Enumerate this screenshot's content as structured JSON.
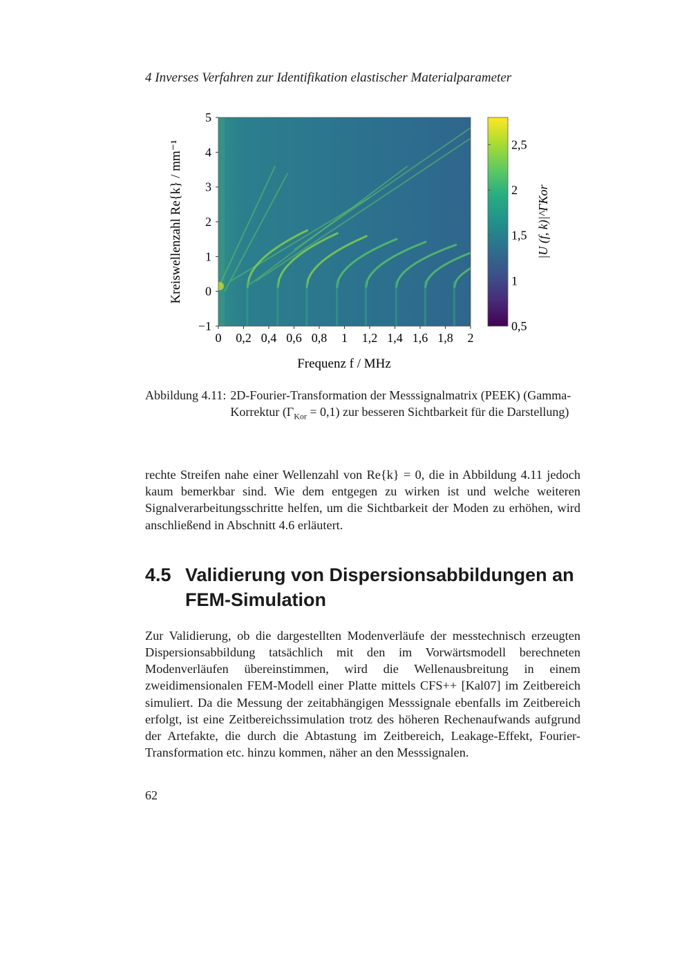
{
  "running_header": "4 Inverses Verfahren zur Identifikation elastischer Materialparameter",
  "chart_data": {
    "type": "heatmap",
    "xlabel": "Frequenz f / MHz",
    "ylabel": "Kreiswellenzahl Re{k} / mm⁻¹",
    "xlim": [
      0,
      2
    ],
    "ylim": [
      -1,
      5
    ],
    "xticks": [
      "0",
      "0,2",
      "0,4",
      "0,6",
      "0,8",
      "1",
      "1,2",
      "1,4",
      "1,6",
      "1,8",
      "2"
    ],
    "yticks": [
      "−1",
      "0",
      "1",
      "2",
      "3",
      "4",
      "5"
    ],
    "colorbar": {
      "label": "|U (f, k)|^ΓKor",
      "range": [
        0.5,
        2.8
      ],
      "ticks": [
        "0,5",
        "1",
        "1,5",
        "2",
        "2,5"
      ],
      "colormap": "viridis"
    }
  },
  "caption": {
    "label": "Abbildung 4.11:",
    "text_1": "2D-Fourier-Transformation der Messsignalmatrix (PEEK) (Gamma-Korrektur (Γ",
    "sub": "Kor",
    "text_2": " = 0,1) zur besseren Sichtbarkeit für die Darstellung)"
  },
  "paragraph_1": "rechte Streifen nahe einer Wellenzahl von Re{k} = 0, die in Abbildung 4.11 jedoch kaum bemerkbar sind. Wie dem entgegen zu wirken ist und welche weiteren Signalverarbeitungsschritte helfen, um die Sichtbarkeit der Moden zu erhöhen, wird anschließend in Abschnitt 4.6 erläutert.",
  "section": {
    "number": "4.5",
    "title": "Validierung von Dispersionsabbildungen an FEM-Simulation"
  },
  "paragraph_2": "Zur Validierung, ob die dargestellten Modenverläufe der messtechnisch erzeugten Dispersionsabbildung tatsächlich mit den im Vorwärtsmodell berechneten Modenverläufen übereinstimmen, wird die Wellenausbreitung in einem zweidimensionalen FEM-Modell einer Platte mittels CFS++ [Kal07] im Zeitbereich simuliert. Da die Messung der zeitabhängigen Messsignale ebenfalls im Zeitbereich erfolgt, ist eine Zeitbereichssimulation trotz des höheren Rechenaufwands aufgrund der Artefakte, die durch die Abtastung im Zeitbereich, Leakage-Effekt, Fourier-Transformation etc. hinzu kommen, näher an den Messsignalen.",
  "page_number": "62"
}
